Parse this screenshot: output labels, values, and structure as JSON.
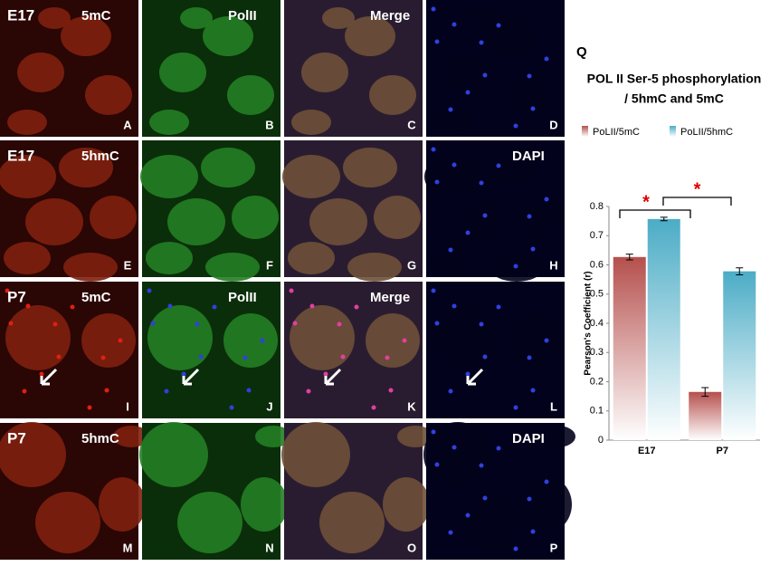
{
  "panels": [
    {
      "letter": "A",
      "stage": "E17",
      "stain": "5mC"
    },
    {
      "letter": "B",
      "stain": "PolII"
    },
    {
      "letter": "C",
      "stain": "Merge"
    },
    {
      "letter": "D"
    },
    {
      "letter": "E",
      "stage": "E17",
      "stain": "5hmC"
    },
    {
      "letter": "F"
    },
    {
      "letter": "G"
    },
    {
      "letter": "H",
      "stain": "DAPI"
    },
    {
      "letter": "I",
      "stage": "P7",
      "stain": "5mC"
    },
    {
      "letter": "J",
      "stain": "PolII"
    },
    {
      "letter": "K",
      "stain": "Merge"
    },
    {
      "letter": "L"
    },
    {
      "letter": "M",
      "stage": "P7",
      "stain": "5hmC"
    },
    {
      "letter": "N"
    },
    {
      "letter": "O"
    },
    {
      "letter": "P",
      "stain": "DAPI"
    }
  ],
  "chart_data": {
    "type": "bar",
    "panel_letter": "Q",
    "title": [
      "POL II Ser-5 phosphorylation",
      "/ 5hmC and 5mC"
    ],
    "y_label": "Pearson's Coefficient (r)",
    "categories": [
      "E17",
      "P7"
    ],
    "series": [
      {
        "name": "PoLII/5mC",
        "color": "#b5504d",
        "values": [
          0.627,
          0.165
        ],
        "errors": [
          0.01,
          0.015
        ]
      },
      {
        "name": "PoLII/5hmC",
        "color": "#4bacc6",
        "values": [
          0.757,
          0.578
        ],
        "errors": [
          0.006,
          0.012
        ]
      }
    ],
    "ylim": [
      0,
      0.8
    ],
    "yticks": [
      0,
      0.1,
      0.2,
      0.3,
      0.4,
      0.5,
      0.6,
      0.7,
      0.8
    ],
    "annotations": [
      "*",
      "*"
    ]
  }
}
